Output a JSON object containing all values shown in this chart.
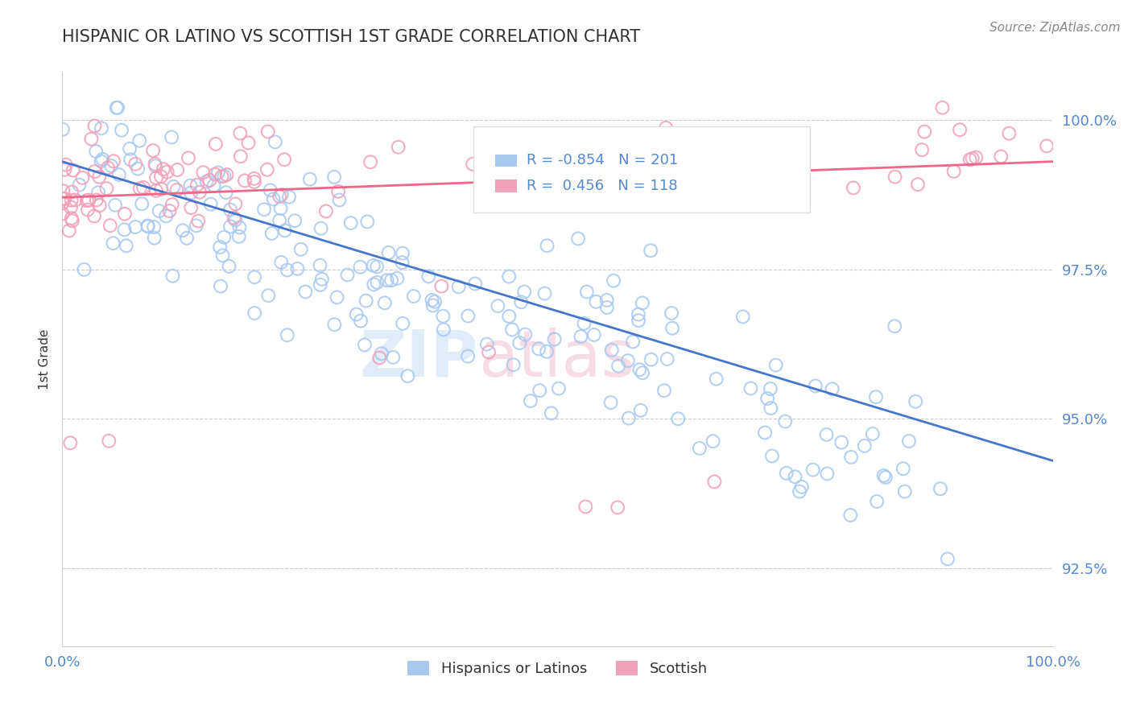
{
  "title": "HISPANIC OR LATINO VS SCOTTISH 1ST GRADE CORRELATION CHART",
  "source_text": "Source: ZipAtlas.com",
  "ylabel": "1st Grade",
  "xlim": [
    0.0,
    1.0
  ],
  "ylim": [
    0.912,
    1.008
  ],
  "yticks": [
    0.925,
    0.95,
    0.975,
    1.0
  ],
  "ytick_labels": [
    "92.5%",
    "95.0%",
    "97.5%",
    "100.0%"
  ],
  "blue_R": -0.854,
  "blue_N": 201,
  "pink_R": 0.456,
  "pink_N": 118,
  "blue_color": "#a8c8f0",
  "pink_color": "#f0a0b8",
  "blue_line_color": "#4477cc",
  "pink_line_color": "#ee6688",
  "tick_color": "#5588cc",
  "watermark_zip": "ZIP",
  "watermark_atlas": "atlas",
  "background_color": "#ffffff",
  "grid_color": "#cccccc",
  "title_color": "#333333",
  "legend_border_color": "#dddddd"
}
